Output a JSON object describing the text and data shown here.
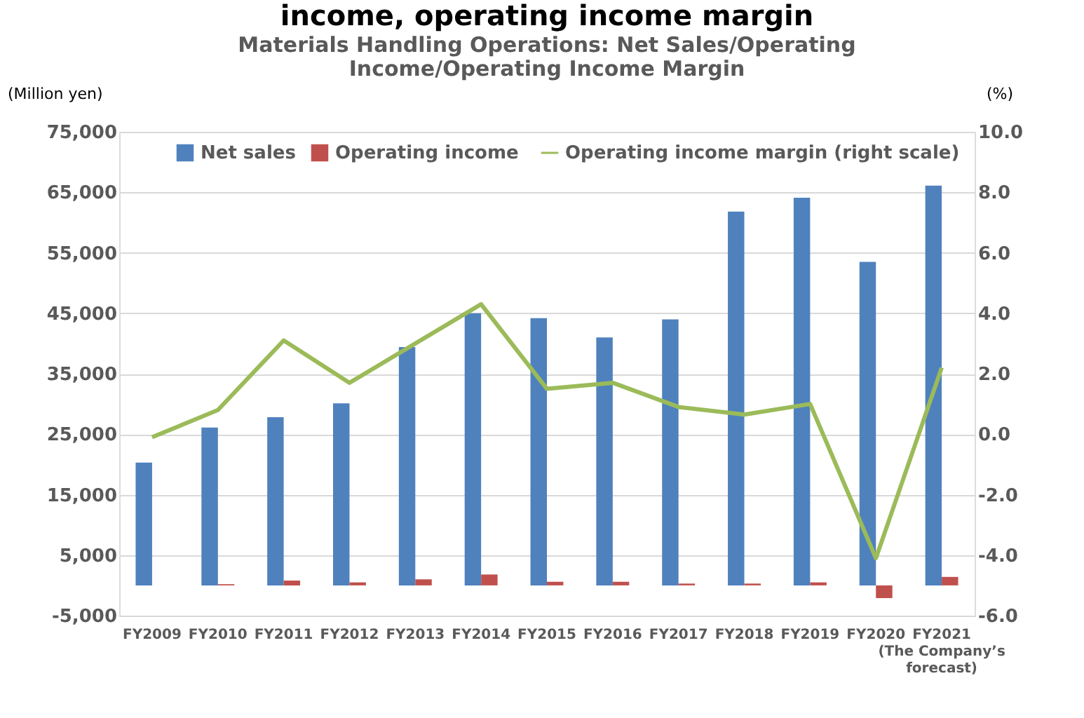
{
  "chart_data": {
    "type": "bar",
    "title": "income, operating income margin",
    "subtitle": "Materials Handling Operations: Net Sales/Operating\nIncome/Operating Income Margin",
    "ylabel": "(Million yen)",
    "y2label": "(%)",
    "categories": [
      "FY2009",
      "FY2010",
      "FY2011",
      "FY2012",
      "FY2013",
      "FY2014",
      "FY2015",
      "FY2016",
      "FY2017",
      "FY2018",
      "FY2019",
      "FY2020",
      "FY2021\n(The Company’s\nforecast)"
    ],
    "series": [
      {
        "name": "Net sales",
        "color": "#4f81bd",
        "values": [
          20300,
          26100,
          27800,
          30100,
          39400,
          45000,
          44200,
          41000,
          44000,
          61800,
          64100,
          53500,
          66100
        ]
      },
      {
        "name": "Operating income",
        "color": "#c0504d",
        "values": [
          0,
          200,
          800,
          500,
          1000,
          1800,
          600,
          600,
          300,
          300,
          500,
          -2100,
          1400
        ]
      },
      {
        "name": "Operating income margin (right scale)",
        "type": "line",
        "axis": "y2",
        "color": "#9bbb59",
        "values": [
          -0.1,
          0.8,
          3.1,
          1.7,
          3.0,
          4.3,
          1.5,
          1.7,
          0.9,
          0.65,
          1.0,
          -4.1,
          2.2
        ]
      }
    ],
    "ylim": [
      -5000,
      75000
    ],
    "yticks": [
      {
        "value": -5000,
        "label": "-5,000"
      },
      {
        "value": 5000,
        "label": "5,000"
      },
      {
        "value": 15000,
        "label": "15,000"
      },
      {
        "value": 25000,
        "label": "25,000"
      },
      {
        "value": 35000,
        "label": "35,000"
      },
      {
        "value": 45000,
        "label": "45,000"
      },
      {
        "value": 55000,
        "label": "55,000"
      },
      {
        "value": 65000,
        "label": "65,000"
      },
      {
        "value": 75000,
        "label": "75,000"
      }
    ],
    "y2lim": [
      -6,
      10
    ],
    "y2ticks": [
      {
        "value": -6,
        "label": "-6.0"
      },
      {
        "value": -4,
        "label": "-4.0"
      },
      {
        "value": -2,
        "label": "-2.0"
      },
      {
        "value": 0,
        "label": "0.0"
      },
      {
        "value": 2,
        "label": "2.0"
      },
      {
        "value": 4,
        "label": "4.0"
      },
      {
        "value": 6,
        "label": "6.0"
      },
      {
        "value": 8,
        "label": "8.0"
      },
      {
        "value": 10,
        "label": "10.0"
      }
    ],
    "grid": "y",
    "legend": "top",
    "marker": "none",
    "line_style": "solid"
  }
}
